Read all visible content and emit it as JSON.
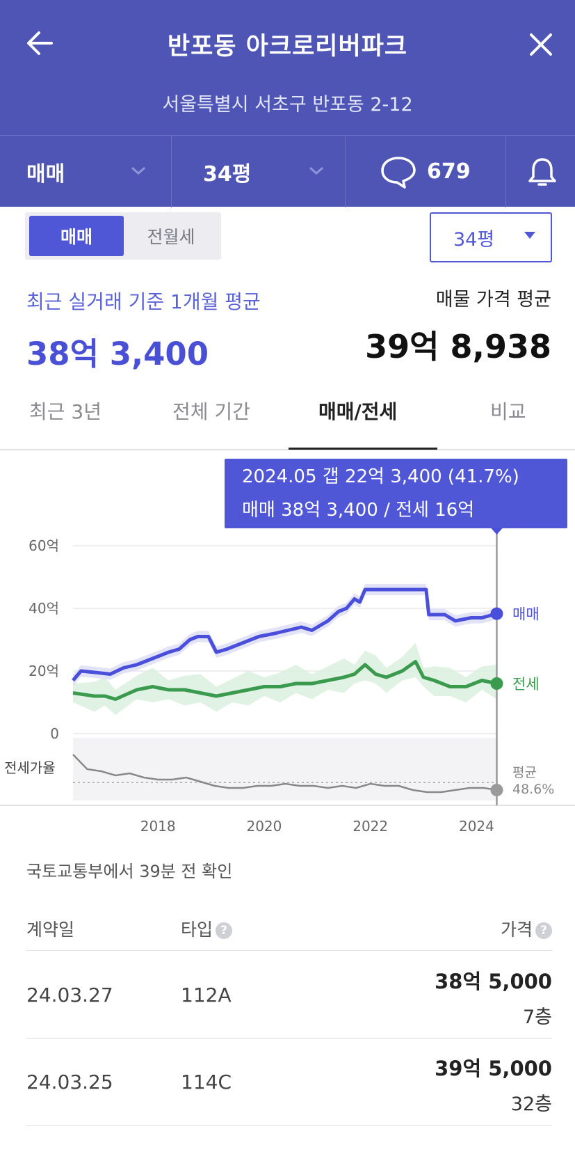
{
  "header": {
    "title": "반포동 아크로리버파크",
    "address": "서울특별시 서초구 반포동 2-12"
  },
  "filters": {
    "deal_type": "매매",
    "area": "34평",
    "comment_count": "679"
  },
  "segment": {
    "options": [
      "매매",
      "전월세"
    ],
    "selected": "매매"
  },
  "size_select": {
    "value": "34평"
  },
  "summary": {
    "recent_label": "최근 실거래 기준 1개월 평균",
    "recent_value": "38억 3,400",
    "listing_label": "매물 가격 평균",
    "listing_value": "39억 8,938"
  },
  "tabs": [
    {
      "label": "최근 3년"
    },
    {
      "label": "전체 기간"
    },
    {
      "label": "매매/전세",
      "active": true
    },
    {
      "label": "비교"
    }
  ],
  "tooltip": {
    "line1": "2024.05  갭 22억 3,400 (41.7%)",
    "line2": "매매 38억 3,400 / 전세 16억"
  },
  "colors": {
    "header": "#4e55b5",
    "accent": "#5057d6",
    "sale": "#4a4fdb",
    "jeonse": "#3a9a4e",
    "ratio": "#888888"
  },
  "chart_data": {
    "type": "line",
    "ylabel": "",
    "y_ticks": [
      "60억",
      "40억",
      "20억",
      "0"
    ],
    "ylim": [
      0,
      60
    ],
    "x_ticks": [
      "2018",
      "2020",
      "2022",
      "2024"
    ],
    "xlim": [
      2016.4,
      2024.4
    ],
    "series": [
      {
        "name": "매매",
        "x": [
          2016.4,
          2016.55,
          2016.85,
          2017.1,
          2017.35,
          2017.6,
          2017.9,
          2018.2,
          2018.4,
          2018.6,
          2018.75,
          2018.95,
          2019.1,
          2019.3,
          2019.6,
          2019.9,
          2020.2,
          2020.45,
          2020.7,
          2020.9,
          2021.2,
          2021.4,
          2021.55,
          2021.7,
          2021.8,
          2021.9,
          2022.3,
          2022.8,
          2023.05,
          2023.1,
          2023.25,
          2023.4,
          2023.6,
          2023.9,
          2024.1,
          2024.38
        ],
        "values": [
          17,
          20,
          19.5,
          19,
          21,
          22,
          24,
          26,
          27,
          30,
          31,
          31,
          26,
          27,
          29,
          31,
          32,
          33,
          34,
          33,
          36,
          39,
          40,
          43,
          42,
          46,
          46,
          46,
          46,
          38,
          38,
          38,
          36,
          37,
          37,
          38.3
        ]
      },
      {
        "name": "전세",
        "x": [
          2016.4,
          2016.8,
          2017.0,
          2017.2,
          2017.6,
          2017.9,
          2018.2,
          2018.5,
          2018.8,
          2019.1,
          2019.4,
          2019.7,
          2020.0,
          2020.3,
          2020.6,
          2020.9,
          2021.2,
          2021.5,
          2021.7,
          2021.9,
          2022.1,
          2022.3,
          2022.6,
          2022.85,
          2023.0,
          2023.2,
          2023.5,
          2023.8,
          2024.1,
          2024.38
        ],
        "values": [
          13,
          12,
          12,
          11,
          14,
          15,
          14,
          14,
          13,
          12,
          13,
          14,
          15,
          15,
          16,
          16,
          17,
          18,
          19,
          22,
          19,
          18,
          20,
          23,
          18,
          17,
          15,
          15,
          17,
          16
        ]
      }
    ],
    "ratio": {
      "label": "전세가율",
      "avg_label": "평균",
      "avg_value": "48.6%",
      "values": [
        62,
        55,
        54,
        52,
        53,
        51,
        50,
        50,
        51,
        49,
        47,
        46,
        46,
        47,
        47,
        48,
        47,
        47,
        46,
        47,
        46,
        48,
        47,
        47,
        45,
        44,
        44,
        45,
        46,
        46,
        45
      ]
    },
    "end_labels": [
      "매매",
      "전세"
    ],
    "selected_x": 2024.38
  },
  "table": {
    "source": "국토교통부에서 39분 전 확인",
    "headers": {
      "date": "계약일",
      "type": "타입",
      "price": "가격"
    },
    "rows": [
      {
        "date": "24.03.27",
        "type": "112A",
        "price": "38억 5,000",
        "floor": "7층"
      },
      {
        "date": "24.03.25",
        "type": "114C",
        "price": "39억 5,000",
        "floor": "32층"
      }
    ]
  }
}
